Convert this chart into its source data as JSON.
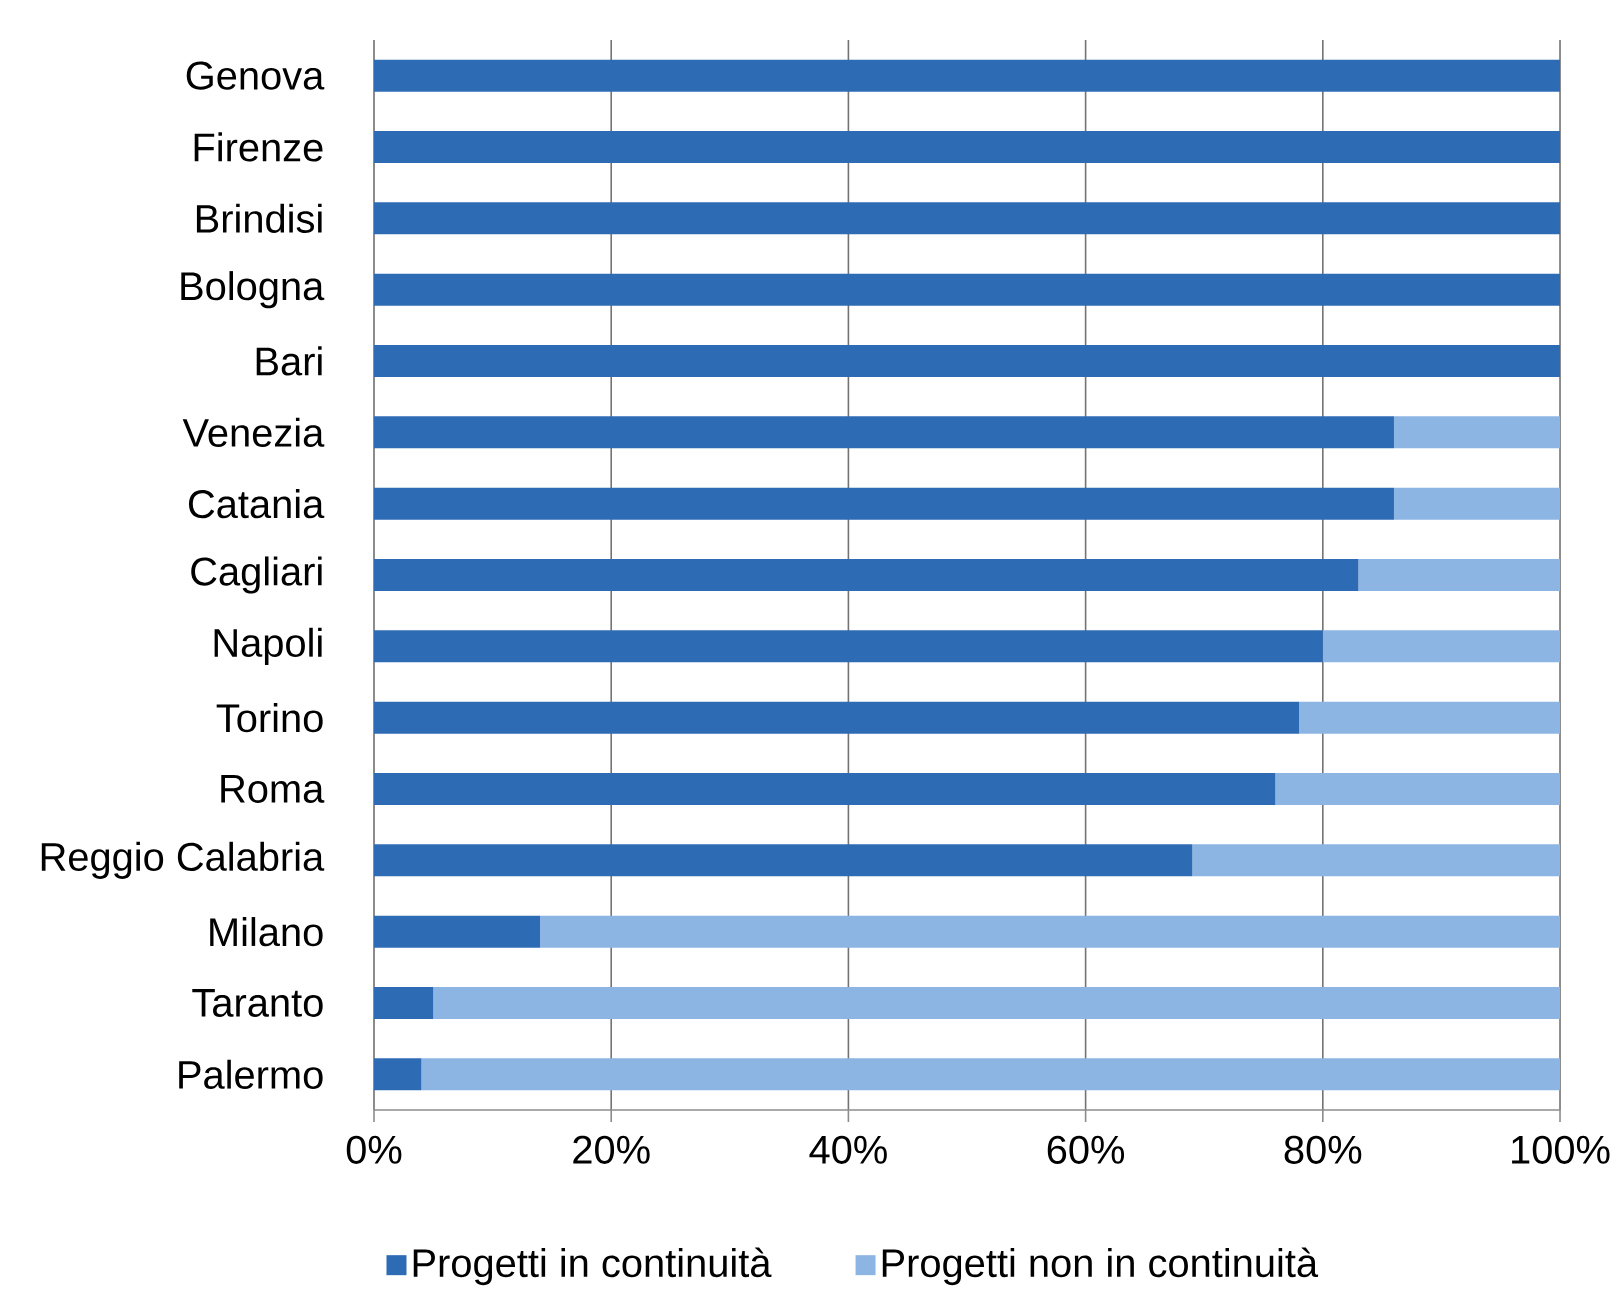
{
  "chart_data": {
    "type": "bar",
    "orientation": "horizontal",
    "stacked": true,
    "categories": [
      "Genova",
      "Firenze",
      "Brindisi",
      "Bologna",
      "Bari",
      "Venezia",
      "Catania",
      "Cagliari",
      "Napoli",
      "Torino",
      "Roma",
      "Reggio Calabria",
      "Milano",
      "Taranto",
      "Palermo"
    ],
    "series": [
      {
        "name": "Progetti in continuità",
        "color": "#2e6bb5",
        "values": [
          100,
          100,
          100,
          100,
          100,
          86,
          86,
          83,
          80,
          78,
          76,
          69,
          14,
          5,
          4
        ]
      },
      {
        "name": "Progetti non in continuità",
        "color": "#8db5e4",
        "values": [
          0,
          0,
          0,
          0,
          0,
          14,
          14,
          17,
          20,
          22,
          24,
          31,
          86,
          95,
          96
        ]
      }
    ],
    "xlim": [
      0,
      100
    ],
    "xticks": [
      {
        "value": 0,
        "label": "0%"
      },
      {
        "value": 20,
        "label": "20%"
      },
      {
        "value": 40,
        "label": "40%"
      },
      {
        "value": 60,
        "label": "60%"
      },
      {
        "value": 80,
        "label": "80%"
      },
      {
        "value": 100,
        "label": "100%"
      }
    ],
    "grid": "x",
    "legend": "bottom"
  }
}
